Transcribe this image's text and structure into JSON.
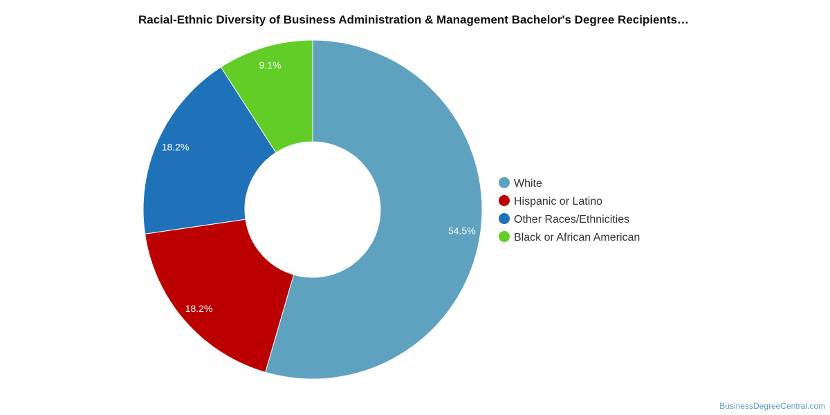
{
  "chart_data": {
    "type": "pie",
    "title": "Racial-Ethnic Diversity of Business Administration & Management Bachelor's Degree Recipients…",
    "donut": true,
    "legend_position": "right",
    "slices": [
      {
        "name": "White",
        "value": 54.5,
        "label": "54.5%",
        "color": "#5ea2c0"
      },
      {
        "name": "Hispanic or Latino",
        "value": 18.2,
        "label": "18.2%",
        "color": "#bb0000"
      },
      {
        "name": "Other Races/Ethnicities",
        "value": 18.2,
        "label": "18.2%",
        "color": "#1f72b8"
      },
      {
        "name": "Black or African American",
        "value": 9.1,
        "label": "9.1%",
        "color": "#62cd26"
      }
    ]
  },
  "credit": "BusinessDegreeCentral.com"
}
